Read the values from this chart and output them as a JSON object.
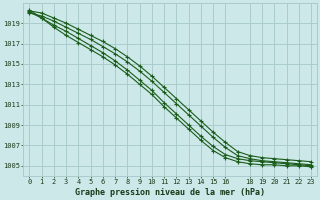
{
  "background_color": "#cce8e8",
  "grid_color": "#aacccc",
  "line_color": "#1a5c1a",
  "marker": "+",
  "xlabel": "Graphe pression niveau de la mer (hPa)",
  "xlim": [
    -0.5,
    23.5
  ],
  "ylim": [
    1004.0,
    1021.0
  ],
  "yticks": [
    1005,
    1007,
    1009,
    1011,
    1013,
    1015,
    1017,
    1019
  ],
  "xticks": [
    0,
    1,
    2,
    3,
    4,
    5,
    6,
    7,
    8,
    9,
    10,
    11,
    12,
    13,
    14,
    15,
    16,
    18,
    19,
    20,
    21,
    22,
    23
  ],
  "x": [
    0,
    1,
    2,
    3,
    4,
    5,
    6,
    7,
    8,
    9,
    10,
    11,
    12,
    13,
    14,
    15,
    16,
    17,
    18,
    19,
    20,
    21,
    22,
    23
  ],
  "lines": [
    [
      1020.2,
      1020.0,
      1019.5,
      1019.0,
      1018.4,
      1017.8,
      1017.2,
      1016.5,
      1015.7,
      1014.8,
      1013.8,
      1012.7,
      1011.6,
      1010.5,
      1009.4,
      1008.3,
      1007.3,
      1006.4,
      1006.0,
      1005.8,
      1005.7,
      1005.6,
      1005.5,
      1005.4
    ],
    [
      1020.0,
      1019.7,
      1019.2,
      1018.6,
      1018.0,
      1017.4,
      1016.7,
      1016.0,
      1015.2,
      1014.3,
      1013.3,
      1012.2,
      1011.1,
      1010.0,
      1008.9,
      1007.8,
      1006.8,
      1006.0,
      1005.7,
      1005.5,
      1005.4,
      1005.3,
      1005.2,
      1005.1
    ],
    [
      1020.1,
      1019.5,
      1018.8,
      1018.2,
      1017.5,
      1016.8,
      1016.1,
      1015.3,
      1014.4,
      1013.4,
      1012.4,
      1011.2,
      1010.1,
      1009.0,
      1007.9,
      1006.9,
      1006.1,
      1005.7,
      1005.5,
      1005.4,
      1005.3,
      1005.2,
      1005.1,
      1005.0
    ],
    [
      1020.3,
      1019.5,
      1018.6,
      1017.8,
      1017.1,
      1016.4,
      1015.7,
      1014.9,
      1014.0,
      1013.0,
      1012.0,
      1010.8,
      1009.7,
      1008.6,
      1007.5,
      1006.5,
      1005.8,
      1005.4,
      1005.2,
      1005.1,
      1005.1,
      1005.0,
      1005.0,
      1004.9
    ]
  ]
}
